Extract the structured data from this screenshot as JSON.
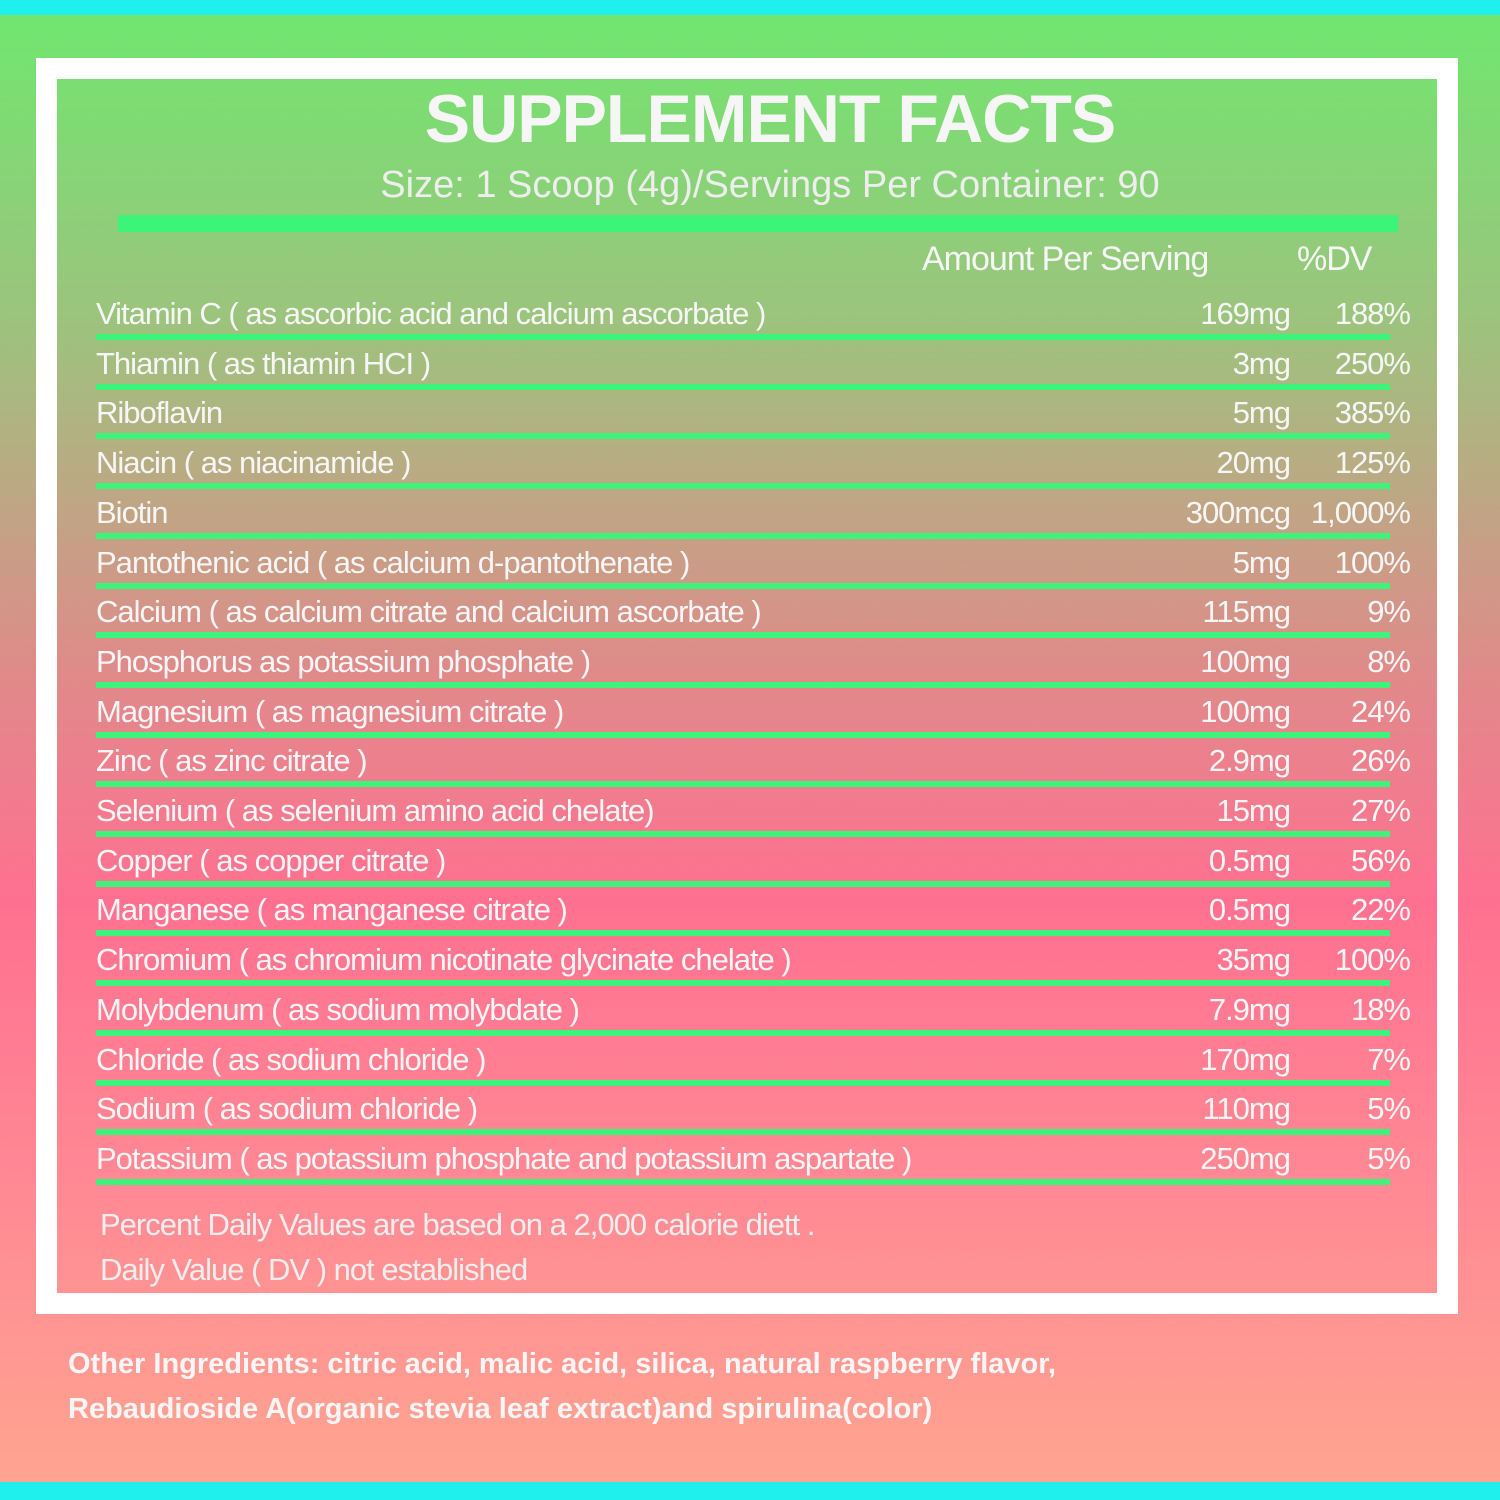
{
  "label": {
    "title": "SUPPLEMENT FACTS",
    "subtitle": "Size: 1 Scoop (4g)/Servings Per Container: 90",
    "header": {
      "amount": "Amount Per Serving",
      "dv": "%DV"
    },
    "rows": [
      [
        "Vitamin C ( as ascorbic acid and calcium ascorbate )",
        "169mg",
        "188%"
      ],
      [
        "Thiamin ( as thiamin HCI )",
        "3mg",
        "250%"
      ],
      [
        "Riboflavin",
        "5mg",
        "385%"
      ],
      [
        "Niacin ( as niacinamide )",
        "20mg",
        "125%"
      ],
      [
        "Biotin",
        "300mcg",
        "1,000%"
      ],
      [
        "Pantothenic acid ( as calcium d-pantothenate )",
        "5mg",
        "100%"
      ],
      [
        "Calcium ( as calcium citrate and calcium ascorbate )",
        "115mg",
        "9%"
      ],
      [
        "Phosphorus as potassium phosphate )",
        "100mg",
        "8%"
      ],
      [
        "Magnesium ( as magnesium citrate )",
        "100mg",
        "24%"
      ],
      [
        "Zinc ( as zinc citrate )",
        "2.9mg",
        "26%"
      ],
      [
        "Selenium ( as selenium amino acid chelate)",
        "15mg",
        "27%"
      ],
      [
        "Copper ( as copper citrate )",
        "0.5mg",
        "56%"
      ],
      [
        "Manganese ( as manganese citrate )",
        "0.5mg",
        "22%"
      ],
      [
        "Chromium ( as chromium nicotinate glycinate chelate )",
        "35mg",
        "100%"
      ],
      [
        "Molybdenum ( as sodium molybdate )",
        "7.9mg",
        "18%"
      ],
      [
        "Chloride ( as sodium chloride )",
        "170mg",
        "7%"
      ],
      [
        "Sodium ( as sodium chloride )",
        "110mg",
        "5%"
      ],
      [
        "Potassium ( as potassium phosphate and potassium aspartate )",
        "250mg",
        "5%"
      ]
    ],
    "footnotes": [
      "Percent Daily Values are based on a 2,000 calorie diett .",
      "Daily Value ( DV ) not established"
    ],
    "other_ingredients": [
      "Other Ingredients: citric acid, malic acid, silica, natural raspberry flavor,",
      "Rebaudioside A(organic stevia leaf extract)and spirulina(color)"
    ]
  }
}
